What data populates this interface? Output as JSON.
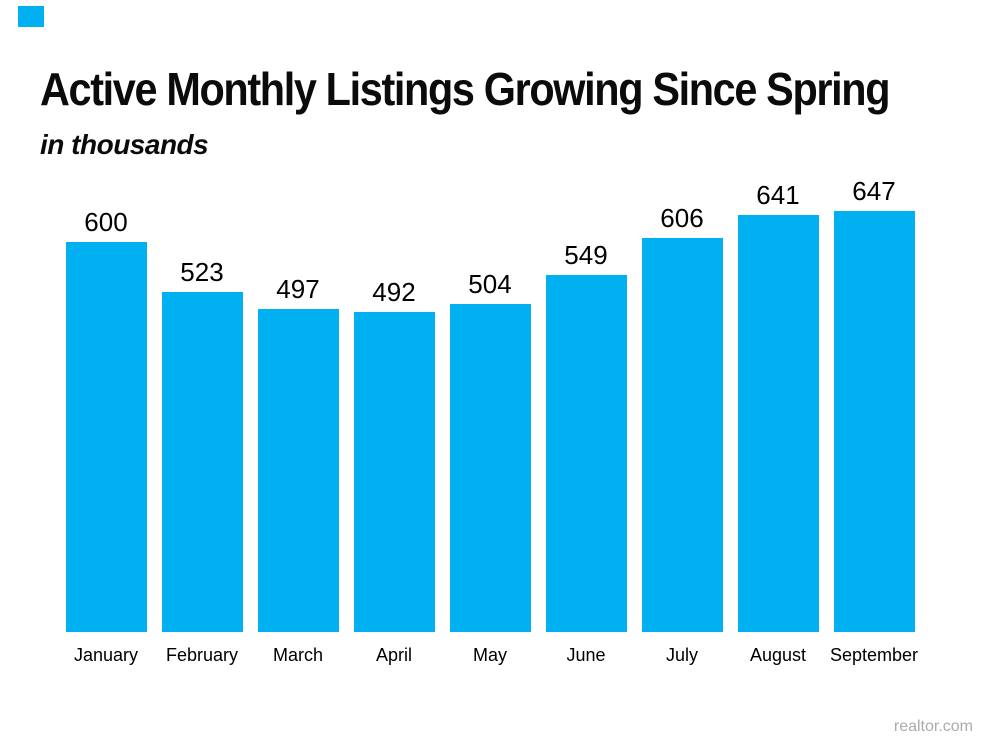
{
  "page": {
    "background_color": "#FFFFFF"
  },
  "brand": {
    "accent_color": "#00B0F0"
  },
  "header": {
    "title": "Active Monthly Listings Growing Since Spring",
    "subtitle": "in thousands"
  },
  "chart_data": {
    "type": "bar",
    "title": "Active Monthly Listings Growing Since Spring",
    "subtitle": "in thousands",
    "categories": [
      "January",
      "February",
      "March",
      "April",
      "May",
      "June",
      "July",
      "August",
      "September"
    ],
    "values": [
      600,
      523,
      497,
      492,
      504,
      549,
      606,
      641,
      647
    ],
    "unit": "thousands",
    "bar_color": "#00B0F0",
    "data_label_color": "#000000",
    "data_labels_position": "above bars",
    "xlabel": "",
    "ylabel": "",
    "ylim": [
      0,
      695
    ],
    "grid": false,
    "legend": false,
    "axis_lines": false
  },
  "footer": {
    "source_label": "realtor.com",
    "source_color": "#ABABAB"
  }
}
